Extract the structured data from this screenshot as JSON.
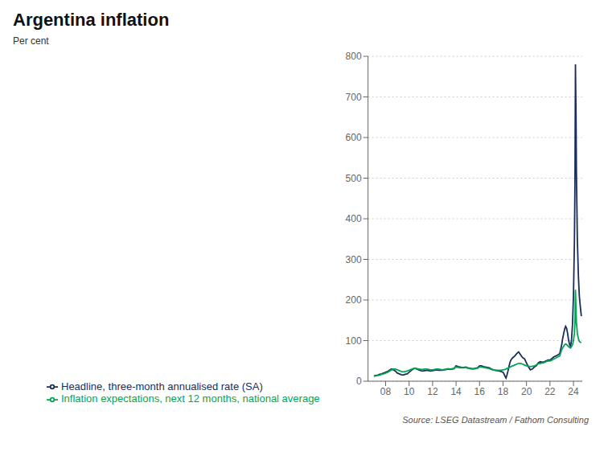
{
  "chart_data": {
    "type": "line",
    "title": "Argentina inflation",
    "ylabel": "Per cent",
    "annotations": [
      "Source: LSEG Datastream / Fathom Consulting"
    ],
    "xlim": [
      2006.5,
      2024.75
    ],
    "xticks": [
      {
        "value": 2008,
        "label": "08"
      },
      {
        "value": 2010,
        "label": "10"
      },
      {
        "value": 2012,
        "label": "12"
      },
      {
        "value": 2014,
        "label": "14"
      },
      {
        "value": 2016,
        "label": "16"
      },
      {
        "value": 2018,
        "label": "18"
      },
      {
        "value": 2020,
        "label": "20"
      },
      {
        "value": 2022,
        "label": "22"
      },
      {
        "value": 2024,
        "label": "24"
      }
    ],
    "ylim": [
      0,
      800
    ],
    "yticks": [
      0,
      100,
      200,
      300,
      400,
      500,
      600,
      700,
      800
    ],
    "grid": true,
    "legend": "bottom",
    "series": [
      {
        "name": "Headline, three-month annualised rate (SA)",
        "color": "#1a2e5a",
        "x": [
          2007.0,
          2007.17,
          2007.33,
          2007.5,
          2007.67,
          2007.83,
          2008.0,
          2008.17,
          2008.33,
          2008.5,
          2008.67,
          2008.83,
          2009.0,
          2009.17,
          2009.33,
          2009.5,
          2009.67,
          2009.83,
          2010.0,
          2010.17,
          2010.33,
          2010.5,
          2010.67,
          2010.83,
          2011.0,
          2011.17,
          2011.33,
          2011.5,
          2011.67,
          2011.83,
          2012.0,
          2012.17,
          2012.33,
          2012.5,
          2012.67,
          2012.83,
          2013.0,
          2013.17,
          2013.33,
          2013.5,
          2013.67,
          2013.83,
          2014.0,
          2014.17,
          2014.33,
          2014.5,
          2014.67,
          2014.83,
          2015.0,
          2015.17,
          2015.33,
          2015.5,
          2015.67,
          2015.83,
          2016.0,
          2016.17,
          2016.33,
          2016.5,
          2016.67,
          2016.83,
          2017.0,
          2017.17,
          2017.33,
          2017.5,
          2017.67,
          2017.83,
          2018.0,
          2018.08,
          2018.17,
          2018.25,
          2018.33,
          2018.42,
          2018.5,
          2018.58,
          2018.67,
          2018.75,
          2018.83,
          2018.92,
          2019.0,
          2019.17,
          2019.33,
          2019.5,
          2019.67,
          2019.83,
          2020.0,
          2020.17,
          2020.33,
          2020.5,
          2020.67,
          2020.83,
          2021.0,
          2021.17,
          2021.33,
          2021.5,
          2021.67,
          2021.83,
          2022.0,
          2022.17,
          2022.33,
          2022.5,
          2022.67,
          2022.83,
          2023.0,
          2023.08,
          2023.17,
          2023.25,
          2023.33,
          2023.42,
          2023.5,
          2023.58,
          2023.67,
          2023.75,
          2023.83,
          2023.92,
          2024.0,
          2024.08,
          2024.13,
          2024.17,
          2024.22,
          2024.25,
          2024.33,
          2024.42,
          2024.5,
          2024.58,
          2024.67
        ],
        "values": [
          13,
          14,
          15,
          17,
          18,
          20,
          22,
          24,
          27,
          30,
          28,
          25,
          20,
          18,
          16,
          15,
          17,
          18,
          22,
          26,
          30,
          32,
          30,
          28,
          26,
          25,
          26,
          27,
          26,
          25,
          26,
          27,
          28,
          27,
          27,
          27,
          28,
          29,
          30,
          29,
          30,
          31,
          38,
          36,
          35,
          34,
          34,
          35,
          33,
          32,
          31,
          31,
          32,
          33,
          38,
          38,
          36,
          35,
          34,
          33,
          30,
          28,
          27,
          26,
          25,
          24,
          22,
          18,
          12,
          8,
          15,
          25,
          35,
          45,
          52,
          55,
          58,
          60,
          62,
          68,
          72,
          65,
          58,
          55,
          45,
          35,
          28,
          30,
          35,
          38,
          45,
          48,
          47,
          48,
          50,
          52,
          52,
          56,
          60,
          62,
          65,
          68,
          90,
          105,
          118,
          128,
          135,
          130,
          118,
          102,
          90,
          85,
          100,
          140,
          210,
          340,
          500,
          780,
          650,
          520,
          350,
          260,
          210,
          185,
          160
        ]
      },
      {
        "name": "Inflation expectations, next 12 months, national average",
        "color": "#00a651",
        "x": [
          2007.0,
          2007.17,
          2007.33,
          2007.5,
          2007.67,
          2007.83,
          2008.0,
          2008.17,
          2008.33,
          2008.5,
          2008.67,
          2008.83,
          2009.0,
          2009.17,
          2009.33,
          2009.5,
          2009.67,
          2009.83,
          2010.0,
          2010.17,
          2010.33,
          2010.5,
          2010.67,
          2010.83,
          2011.0,
          2011.17,
          2011.33,
          2011.5,
          2011.67,
          2011.83,
          2012.0,
          2012.17,
          2012.33,
          2012.5,
          2012.67,
          2012.83,
          2013.0,
          2013.17,
          2013.33,
          2013.5,
          2013.67,
          2013.83,
          2014.0,
          2014.17,
          2014.33,
          2014.5,
          2014.67,
          2014.83,
          2015.0,
          2015.17,
          2015.33,
          2015.5,
          2015.67,
          2015.83,
          2016.0,
          2016.17,
          2016.33,
          2016.5,
          2016.67,
          2016.83,
          2017.0,
          2017.17,
          2017.33,
          2017.5,
          2017.67,
          2017.83,
          2018.0,
          2018.17,
          2018.33,
          2018.5,
          2018.67,
          2018.83,
          2019.0,
          2019.17,
          2019.33,
          2019.5,
          2019.67,
          2019.83,
          2020.0,
          2020.17,
          2020.33,
          2020.5,
          2020.67,
          2020.83,
          2021.0,
          2021.17,
          2021.33,
          2021.5,
          2021.67,
          2021.83,
          2022.0,
          2022.17,
          2022.33,
          2022.5,
          2022.67,
          2022.83,
          2023.0,
          2023.08,
          2023.17,
          2023.25,
          2023.33,
          2023.42,
          2023.5,
          2023.58,
          2023.67,
          2023.75,
          2023.83,
          2023.92,
          2024.0,
          2024.08,
          2024.13,
          2024.17,
          2024.22,
          2024.25,
          2024.33,
          2024.42,
          2024.5,
          2024.58,
          2024.67
        ],
        "values": [
          12,
          13,
          14,
          15,
          17,
          18,
          20,
          22,
          25,
          28,
          30,
          30,
          28,
          26,
          24,
          23,
          24,
          25,
          27,
          29,
          31,
          32,
          31,
          30,
          29,
          29,
          30,
          30,
          29,
          28,
          28,
          29,
          30,
          30,
          29,
          28,
          29,
          30,
          31,
          30,
          31,
          32,
          35,
          34,
          33,
          33,
          33,
          34,
          32,
          31,
          30,
          30,
          31,
          32,
          35,
          35,
          34,
          33,
          32,
          31,
          29,
          28,
          27,
          27,
          27,
          27,
          28,
          29,
          31,
          33,
          36,
          38,
          40,
          42,
          44,
          44,
          42,
          40,
          38,
          37,
          36,
          37,
          38,
          40,
          43,
          44,
          45,
          46,
          48,
          50,
          50,
          52,
          55,
          57,
          60,
          62,
          78,
          82,
          86,
          90,
          92,
          90,
          88,
          85,
          83,
          82,
          85,
          90,
          100,
          118,
          145,
          225,
          175,
          145,
          118,
          105,
          98,
          96,
          95
        ]
      }
    ]
  }
}
